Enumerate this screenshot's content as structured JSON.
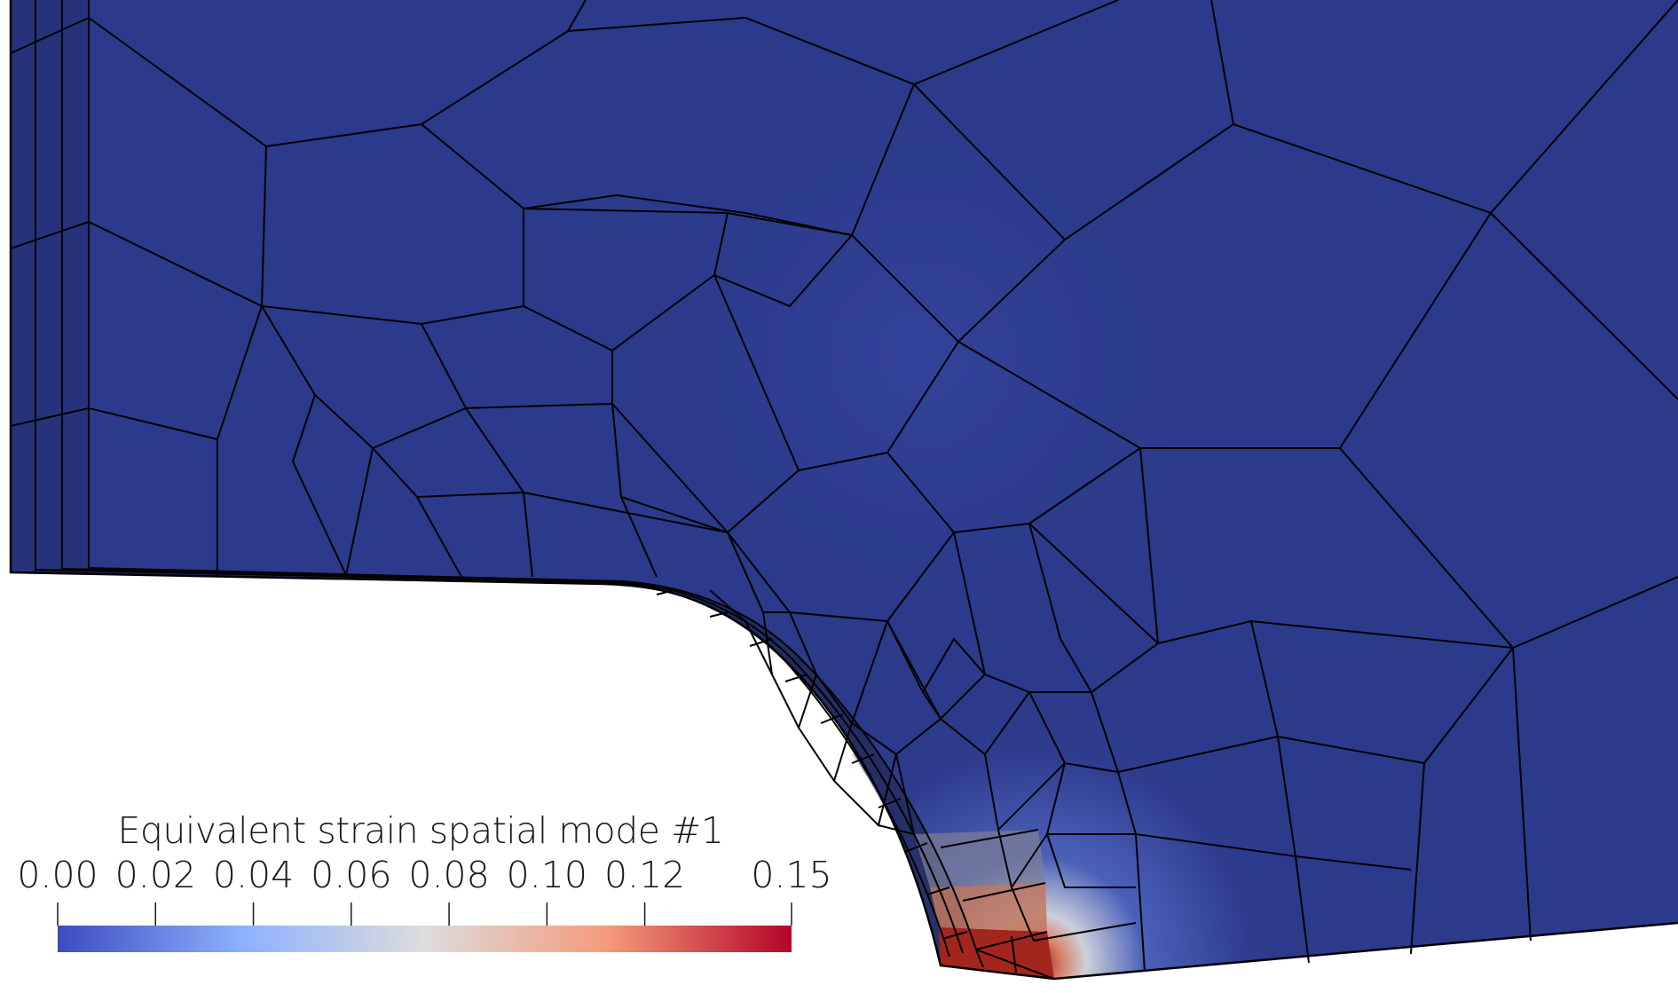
{
  "legend": {
    "title": "Equivalent strain spatial mode #1",
    "range": [
      0.0,
      0.15
    ],
    "ticks": [
      {
        "value": 0.0,
        "label": "0.00"
      },
      {
        "value": 0.02,
        "label": "0.02"
      },
      {
        "value": 0.04,
        "label": "0.04"
      },
      {
        "value": 0.06,
        "label": "0.06"
      },
      {
        "value": 0.08,
        "label": "0.08"
      },
      {
        "value": 0.1,
        "label": "0.10"
      },
      {
        "value": 0.12,
        "label": "0.12"
      },
      {
        "value": 0.15,
        "label": "0.15"
      }
    ],
    "colormap": [
      "#3b4cc0",
      "#8db0fe",
      "#dddddd",
      "#f49a7b",
      "#b40426"
    ]
  },
  "colors": {
    "mesh_fill": "#2b3a8a",
    "mesh_edge": "#000000",
    "hotspot": "#8b1a1a"
  }
}
